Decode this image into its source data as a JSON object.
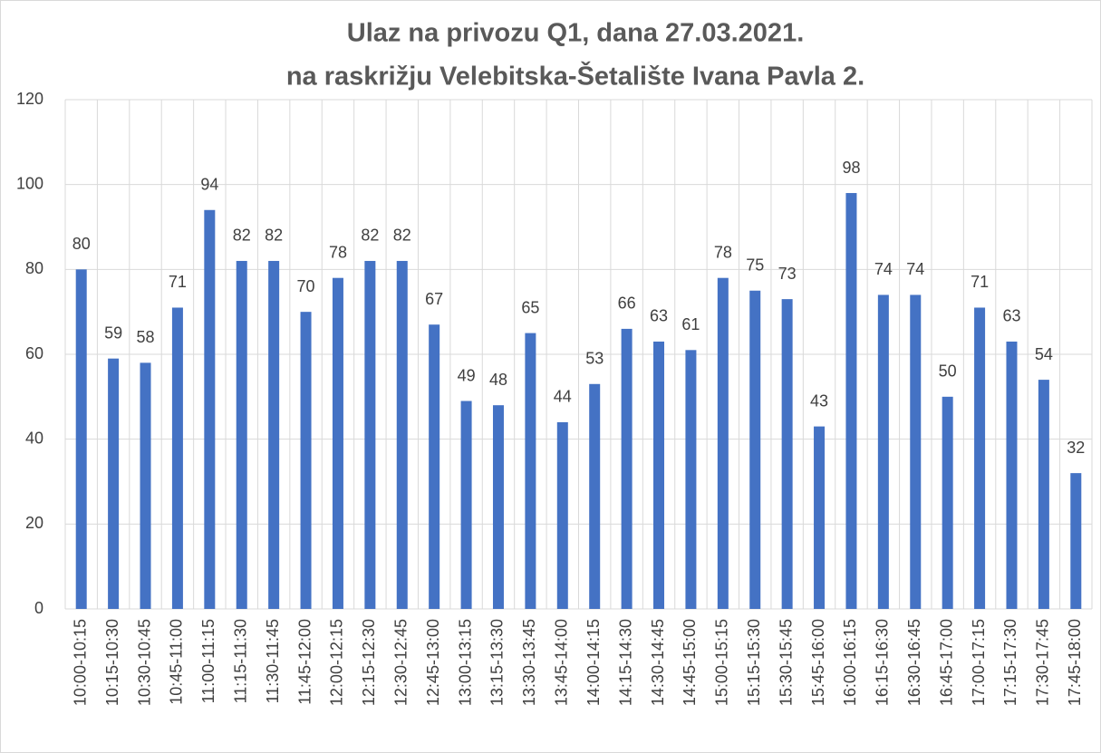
{
  "chart_data": {
    "type": "bar",
    "title": [
      "Ulaz na privozu Q1, dana 27.03.2021.",
      "na raskrižju Velebitska-Šetalište Ivana Pavla 2."
    ],
    "categories": [
      "10:00-10:15",
      "10:15-10:30",
      "10:30-10:45",
      "10:45-11:00",
      "11:00-11:15",
      "11:15-11:30",
      "11:30-11:45",
      "11:45-12:00",
      "12:00-12:15",
      "12:15-12:30",
      "12:30-12:45",
      "12:45-13:00",
      "13:00-13:15",
      "13:15-13:30",
      "13:30-13:45",
      "13:45-14:00",
      "14:00-14:15",
      "14:15-14:30",
      "14:30-14:45",
      "14:45-15:00",
      "15:00-15:15",
      "15:15-15:30",
      "15:30-15:45",
      "15:45-16:00",
      "16:00-16:15",
      "16:15-16:30",
      "16:30-16:45",
      "16:45-17:00",
      "17:00-17:15",
      "17:15-17:30",
      "17:30-17:45",
      "17:45-18:00"
    ],
    "values": [
      80,
      59,
      58,
      71,
      94,
      82,
      82,
      70,
      78,
      82,
      82,
      67,
      49,
      48,
      65,
      44,
      53,
      66,
      63,
      61,
      78,
      75,
      73,
      43,
      98,
      74,
      74,
      50,
      71,
      63,
      54,
      32
    ],
    "color": "#4472c4",
    "ylim": [
      0,
      120
    ],
    "yticks": [
      0,
      20,
      40,
      60,
      80,
      100,
      120
    ],
    "grid": true
  }
}
